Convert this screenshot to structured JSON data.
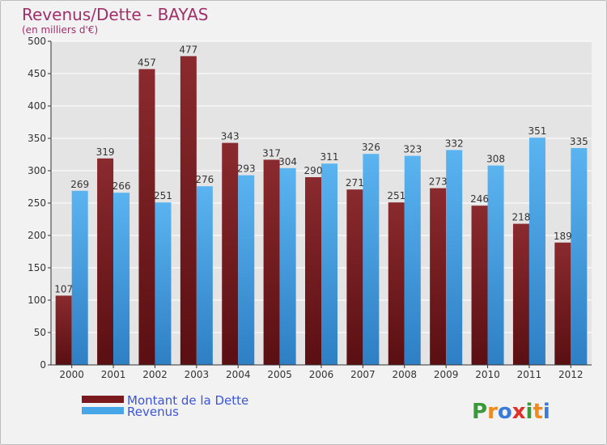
{
  "chart_data": {
    "type": "bar",
    "title": "Revenus/Dette - BAYAS",
    "subtitle": "(en milliers d'€)",
    "categories": [
      "2000",
      "2001",
      "2002",
      "2003",
      "2004",
      "2005",
      "2006",
      "2007",
      "2008",
      "2009",
      "2010",
      "2011",
      "2012"
    ],
    "series": [
      {
        "name": "Montant de la Dette",
        "values": [
          107,
          319,
          457,
          477,
          343,
          317,
          290,
          271,
          251,
          273,
          246,
          218,
          189
        ],
        "color": "#7a1a1e"
      },
      {
        "name": "Revenus",
        "values": [
          269,
          266,
          251,
          276,
          293,
          304,
          311,
          326,
          323,
          332,
          308,
          351,
          335
        ],
        "color": "#47a6e8"
      }
    ],
    "ylim": [
      0,
      500
    ],
    "yticks": [
      0,
      50,
      100,
      150,
      200,
      250,
      300,
      350,
      400,
      450,
      500
    ],
    "grid": true,
    "legend_position": "bottom-left"
  },
  "logo": {
    "text": "Proxiti",
    "letters": [
      "P",
      "r",
      "o",
      "x",
      "i",
      "t",
      "i"
    ],
    "colors": [
      "#3a9a3a",
      "#f08a1a",
      "#3a7ad8",
      "#e0302a",
      "#3a9a3a",
      "#f08a1a",
      "#3a7ad8"
    ]
  }
}
